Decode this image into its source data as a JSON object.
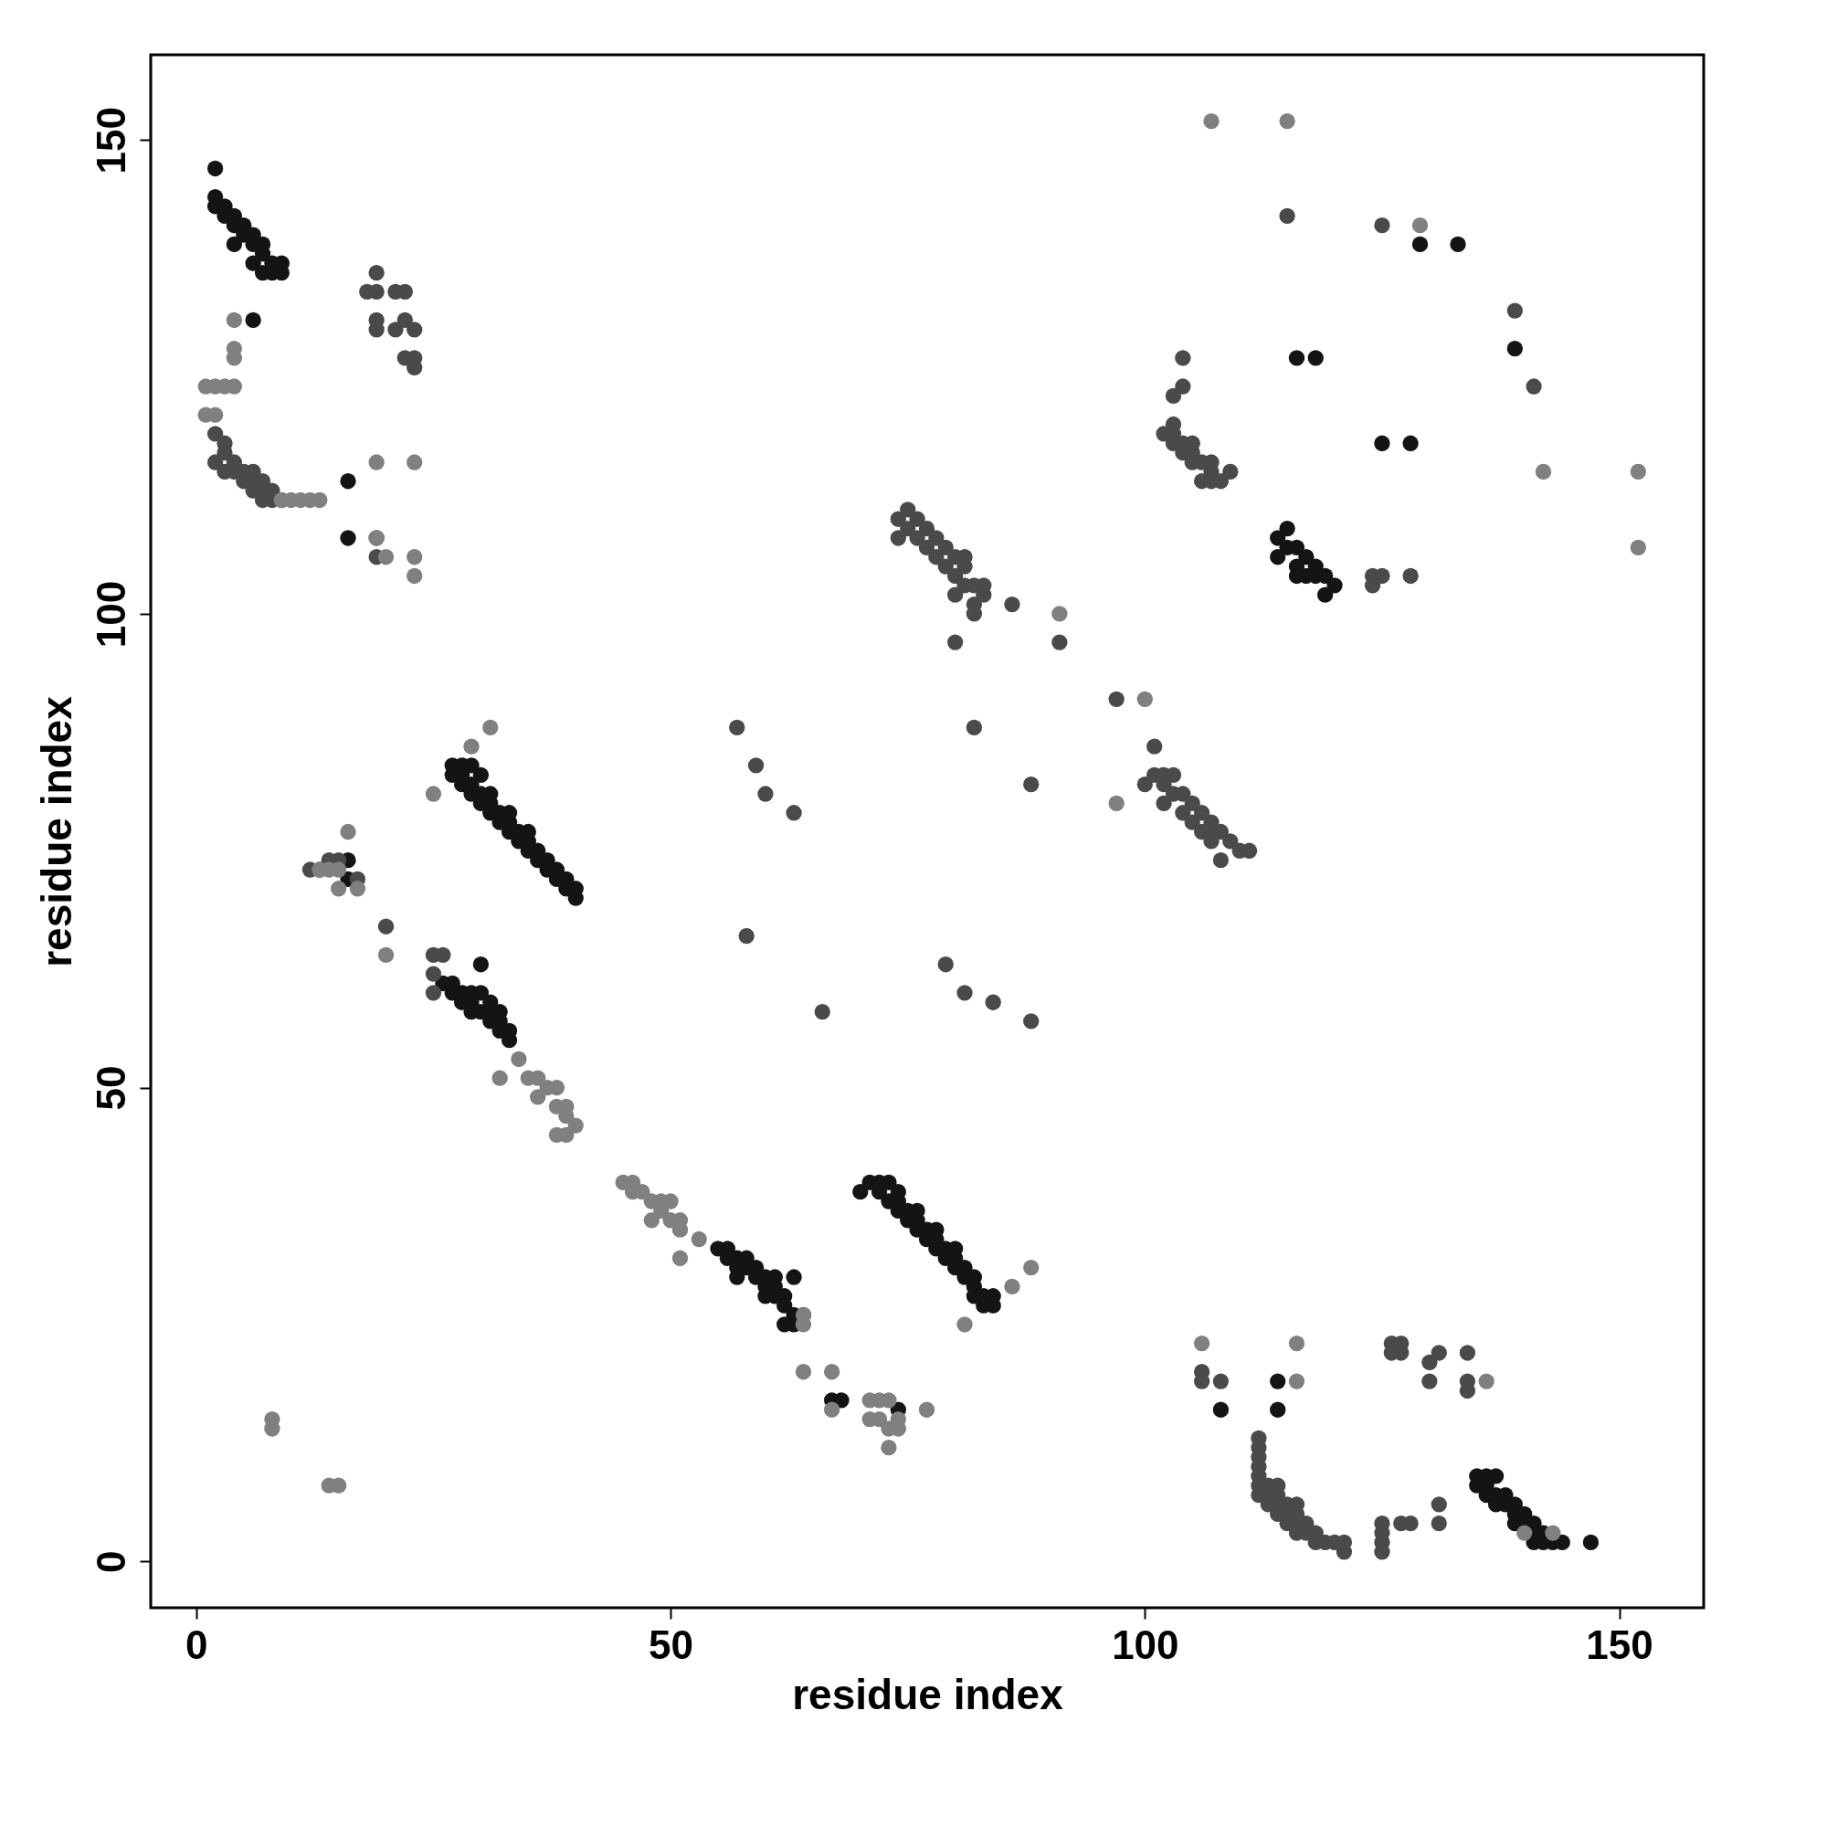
{
  "chart_data": {
    "type": "scatter",
    "xlabel": "residue index",
    "ylabel": "residue index",
    "xlim": [
      -4.8,
      158.9
    ],
    "ylim": [
      -4.9,
      159
    ],
    "xticks": [
      0,
      50,
      100,
      150
    ],
    "yticks": [
      0,
      50,
      100,
      150
    ],
    "grid": false,
    "legend": false,
    "marker": "circle",
    "series": [
      {
        "color": "#141414",
        "x": [
          2,
          2,
          2,
          3,
          3,
          4,
          4,
          5,
          5,
          6,
          6,
          7,
          7,
          8,
          8,
          9,
          9,
          4,
          6,
          7,
          27,
          27,
          28,
          28,
          28,
          29,
          29,
          29,
          30,
          30,
          30,
          31,
          31,
          31,
          32,
          32,
          33,
          33,
          33,
          34,
          34,
          35,
          35,
          35,
          36,
          36,
          37,
          37,
          38,
          38,
          39,
          39,
          40,
          40,
          26,
          27,
          28,
          28,
          29,
          29,
          29,
          30,
          30,
          31,
          31,
          32,
          32,
          33,
          33,
          27,
          31,
          32,
          55,
          56,
          56,
          57,
          57,
          58,
          58,
          59,
          59,
          60,
          60,
          61,
          61,
          62,
          62,
          63,
          63,
          62,
          64,
          61,
          57,
          60,
          70,
          71,
          72,
          72,
          73,
          73,
          74,
          74,
          74,
          75,
          75,
          76,
          76,
          77,
          77,
          78,
          78,
          79,
          79,
          80,
          80,
          81,
          81,
          82,
          82,
          83,
          83,
          84,
          84,
          82,
          76,
          78,
          80,
          114,
          114,
          115,
          115,
          116,
          116,
          117,
          117,
          118,
          118,
          119,
          119,
          120,
          116,
          135,
          136,
          137,
          135,
          136,
          137,
          138,
          138,
          139,
          139,
          140,
          140,
          141,
          141,
          142,
          142,
          143,
          144,
          137,
          139,
          141,
          136,
          147,
          129,
          133,
          116,
          118,
          125,
          128,
          139,
          108,
          114,
          114,
          6,
          16,
          16,
          16,
          16,
          30,
          63,
          67,
          68,
          74
        ],
        "values": [
          147,
          144,
          143,
          143,
          142,
          142,
          141,
          141,
          140,
          140,
          139,
          139,
          138,
          137,
          136,
          137,
          136,
          139,
          137,
          136,
          84,
          83,
          84,
          83,
          82,
          84,
          82,
          81,
          83,
          81,
          80,
          81,
          80,
          79,
          79,
          78,
          79,
          78,
          77,
          77,
          76,
          77,
          76,
          75,
          75,
          74,
          74,
          73,
          73,
          72,
          72,
          71,
          71,
          70,
          61,
          60,
          60,
          59,
          60,
          59,
          58,
          60,
          58,
          58,
          57,
          57,
          56,
          56,
          55,
          61,
          59,
          58,
          33,
          33,
          32,
          32,
          31,
          32,
          31,
          31,
          30,
          30,
          29,
          29,
          28,
          28,
          27,
          26,
          25,
          25,
          26,
          30,
          30,
          28,
          39,
          40,
          40,
          39,
          40,
          38,
          39,
          38,
          37,
          37,
          36,
          36,
          35,
          35,
          34,
          34,
          33,
          33,
          32,
          32,
          31,
          31,
          30,
          29,
          28,
          28,
          27,
          28,
          27,
          30,
          37,
          35,
          33,
          108,
          106,
          109,
          107,
          107,
          105,
          106,
          104,
          105,
          104,
          104,
          102,
          103,
          104,
          9,
          9,
          9,
          8,
          8,
          7,
          7,
          6,
          6,
          5,
          5,
          4,
          4,
          3,
          3,
          2,
          2,
          2,
          6,
          4,
          2,
          7,
          2,
          139,
          139,
          127,
          127,
          118,
          118,
          128,
          16,
          16,
          19,
          131,
          114,
          108,
          74,
          72,
          63,
          30,
          17,
          17,
          16
        ]
      },
      {
        "color": "#4a4a4a",
        "x": [
          3,
          3,
          4,
          4,
          5,
          5,
          6,
          6,
          7,
          7,
          8,
          9,
          2,
          3,
          6,
          7,
          8,
          19,
          18,
          19,
          19,
          19,
          21,
          22,
          21,
          22,
          23,
          22,
          23,
          23,
          74,
          74,
          75,
          75,
          76,
          76,
          77,
          77,
          78,
          78,
          79,
          79,
          80,
          80,
          81,
          81,
          82,
          82,
          83,
          83,
          80,
          81,
          82,
          100,
          101,
          101,
          102,
          102,
          103,
          103,
          104,
          104,
          105,
          105,
          106,
          106,
          107,
          107,
          108,
          108,
          109,
          110,
          111,
          102,
          107,
          104,
          103,
          104,
          102,
          103,
          103,
          104,
          104,
          105,
          105,
          106,
          106,
          107,
          107,
          108,
          109,
          103,
          105,
          107,
          112,
          112,
          112,
          112,
          112,
          112,
          112,
          113,
          113,
          113,
          114,
          114,
          114,
          115,
          115,
          115,
          116,
          116,
          116,
          117,
          117,
          118,
          118,
          119,
          120,
          121,
          121,
          114,
          116,
          57,
          59,
          60,
          63,
          58,
          79,
          81,
          84,
          88,
          66,
          82,
          88,
          80,
          91,
          97,
          86,
          12,
          13,
          14,
          15,
          17,
          20,
          25,
          26,
          25,
          25,
          124,
          125,
          128,
          124,
          125,
          125,
          125,
          125,
          127,
          128,
          131,
          131,
          106,
          106,
          108,
          126,
          127,
          126,
          127,
          130,
          130,
          131,
          134,
          134,
          134,
          139,
          141,
          115,
          125,
          2,
          19,
          19
        ],
        "values": [
          118,
          117,
          116,
          115,
          115,
          114,
          114,
          113,
          113,
          112,
          112,
          112,
          116,
          115,
          115,
          114,
          113,
          136,
          134,
          134,
          131,
          130,
          134,
          134,
          130,
          131,
          130,
          127,
          127,
          126,
          108,
          110,
          111,
          109,
          110,
          108,
          109,
          107,
          108,
          106,
          107,
          105,
          106,
          104,
          105,
          103,
          103,
          101,
          103,
          102,
          102,
          106,
          100,
          82,
          86,
          83,
          83,
          80,
          83,
          81,
          81,
          79,
          80,
          78,
          79,
          77,
          78,
          76,
          77,
          74,
          76,
          75,
          75,
          82,
          77,
          127,
          123,
          124,
          119,
          120,
          118,
          118,
          117,
          117,
          116,
          116,
          114,
          115,
          114,
          114,
          115,
          119,
          118,
          116,
          13,
          12,
          11,
          10,
          9,
          8,
          7,
          8,
          7,
          6,
          7,
          6,
          5,
          6,
          5,
          4,
          5,
          4,
          3,
          4,
          3,
          3,
          2,
          2,
          2,
          1,
          2,
          8,
          6,
          88,
          84,
          81,
          79,
          66,
          63,
          60,
          59,
          57,
          58,
          88,
          82,
          97,
          97,
          91,
          101,
          73,
          73,
          74,
          74,
          72,
          67,
          64,
          64,
          60,
          62,
          104,
          104,
          104,
          103,
          4,
          3,
          2,
          1,
          4,
          4,
          6,
          4,
          20,
          19,
          19,
          23,
          23,
          22,
          22,
          21,
          19,
          22,
          22,
          19,
          18,
          132,
          124,
          142,
          141,
          119,
          108,
          106
        ]
      },
      {
        "color": "#808080",
        "x": [
          1,
          2,
          3,
          4,
          1,
          2,
          4,
          4,
          4,
          9,
          10,
          11,
          12,
          13,
          19,
          19,
          20,
          23,
          23,
          23,
          29,
          31,
          25,
          13,
          14,
          15,
          16,
          17,
          15,
          20,
          32,
          34,
          35,
          36,
          37,
          38,
          36,
          38,
          39,
          38,
          39,
          40,
          39,
          8,
          8,
          14,
          15,
          45,
          46,
          46,
          47,
          48,
          49,
          50,
          48,
          50,
          51,
          51,
          53,
          49,
          51,
          64,
          64,
          64,
          67,
          67,
          86,
          88,
          81,
          71,
          72,
          73,
          73,
          74,
          77,
          74,
          71,
          72,
          73,
          91,
          100,
          97,
          107,
          115,
          129,
          142,
          152,
          152,
          106,
          116,
          116,
          136,
          140,
          143
        ],
        "values": [
          124,
          124,
          124,
          124,
          121,
          121,
          131,
          128,
          127,
          112,
          112,
          112,
          112,
          112,
          116,
          108,
          106,
          116,
          106,
          104,
          86,
          88,
          81,
          73,
          73,
          73,
          77,
          71,
          71,
          64,
          51,
          53,
          51,
          51,
          50,
          50,
          49,
          48,
          48,
          45,
          45,
          46,
          47,
          15,
          14,
          8,
          8,
          40,
          40,
          39,
          39,
          38,
          38,
          38,
          36,
          36,
          35,
          32,
          34,
          37,
          36,
          25,
          26,
          20,
          20,
          16,
          29,
          31,
          25,
          17,
          17,
          17,
          14,
          14,
          16,
          15,
          15,
          15,
          12,
          100,
          91,
          80,
          152,
          152,
          141,
          115,
          115,
          107,
          23,
          23,
          19,
          19,
          3,
          3
        ]
      }
    ]
  }
}
